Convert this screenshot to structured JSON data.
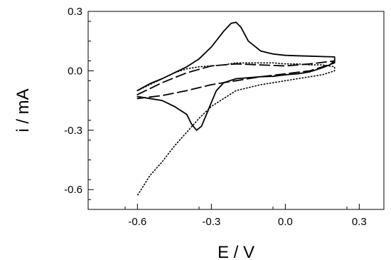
{
  "chart_data": {
    "type": "line",
    "xlabel": "E / V",
    "ylabel": "i / mA",
    "xlim": [
      -0.8,
      0.4
    ],
    "ylim": [
      -0.7,
      0.3
    ],
    "x_ticks": [
      {
        "value": -0.6,
        "label": "-0.6"
      },
      {
        "value": -0.3,
        "label": "-0.3"
      },
      {
        "value": 0.0,
        "label": "0.0"
      },
      {
        "value": 0.3,
        "label": "0.3"
      }
    ],
    "y_ticks": [
      {
        "value": 0.3,
        "label": "0.3"
      },
      {
        "value": 0.0,
        "label": "0.0"
      },
      {
        "value": -0.3,
        "label": "-0.3"
      },
      {
        "value": -0.6,
        "label": "-0.6"
      }
    ],
    "grid": false,
    "legend": "none",
    "series": [
      {
        "style": "solid",
        "color": "#000000",
        "x": [
          -0.6,
          -0.55,
          -0.5,
          -0.45,
          -0.4,
          -0.35,
          -0.3,
          -0.25,
          -0.22,
          -0.2,
          -0.18,
          -0.15,
          -0.1,
          -0.05,
          0.0,
          0.05,
          0.1,
          0.15,
          0.2,
          0.2,
          0.18,
          0.15,
          0.1,
          0.05,
          0.0,
          -0.05,
          -0.1,
          -0.15,
          -0.2,
          -0.25,
          -0.28,
          -0.3,
          -0.32,
          -0.34,
          -0.36,
          -0.38,
          -0.4,
          -0.45,
          -0.5,
          -0.55,
          -0.6
        ],
        "y": [
          -0.1,
          -0.065,
          -0.04,
          -0.01,
          0.02,
          0.06,
          0.12,
          0.2,
          0.24,
          0.245,
          0.22,
          0.15,
          0.1,
          0.085,
          0.078,
          0.076,
          0.074,
          0.072,
          0.07,
          0.05,
          0.03,
          0.015,
          -0.005,
          -0.015,
          -0.02,
          -0.028,
          -0.03,
          -0.035,
          -0.04,
          -0.06,
          -0.1,
          -0.16,
          -0.22,
          -0.28,
          -0.3,
          -0.27,
          -0.22,
          -0.18,
          -0.15,
          -0.14,
          -0.13
        ]
      },
      {
        "style": "dashed",
        "color": "#000000",
        "x": [
          -0.6,
          -0.5,
          -0.4,
          -0.3,
          -0.2,
          -0.1,
          0.0,
          0.1,
          0.2,
          0.2,
          0.1,
          0.0,
          -0.1,
          -0.2,
          -0.3,
          -0.4,
          -0.5,
          -0.6
        ],
        "y": [
          -0.12,
          -0.06,
          -0.01,
          0.025,
          0.035,
          0.03,
          0.025,
          0.035,
          0.05,
          0.04,
          0.0,
          -0.015,
          -0.03,
          -0.05,
          -0.07,
          -0.1,
          -0.125,
          -0.14
        ]
      },
      {
        "style": "dotted",
        "color": "#000000",
        "x": [
          -0.6,
          -0.55,
          -0.5,
          -0.45,
          -0.4,
          -0.35,
          -0.3,
          -0.25,
          -0.2,
          -0.15,
          -0.1,
          -0.05,
          0.0,
          0.05,
          0.1,
          0.15,
          0.2,
          0.2,
          0.15,
          0.1,
          0.05,
          0.0,
          -0.05,
          -0.1,
          -0.2,
          -0.3,
          -0.35,
          -0.4,
          -0.45,
          -0.5,
          -0.55,
          -0.6
        ],
        "y": [
          -0.1,
          -0.07,
          -0.04,
          -0.01,
          0.01,
          0.02,
          0.025,
          0.03,
          0.04,
          0.04,
          0.04,
          0.04,
          0.035,
          0.035,
          0.03,
          0.03,
          0.02,
          0.0,
          -0.02,
          -0.03,
          -0.04,
          -0.05,
          -0.06,
          -0.07,
          -0.1,
          -0.18,
          -0.24,
          -0.31,
          -0.38,
          -0.46,
          -0.53,
          -0.63
        ]
      }
    ]
  }
}
